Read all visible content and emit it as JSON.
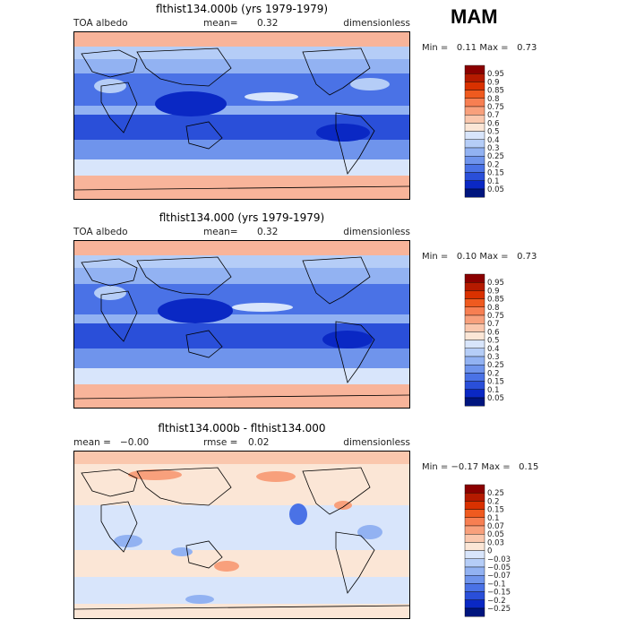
{
  "season": "MAM",
  "panels": [
    {
      "title": "flthist134.000b (yrs 1979-1979)",
      "left_label": "TOA albedo",
      "mean_label": "mean=",
      "mean_value": "0.32",
      "units": "dimensionless",
      "min_label": "Min =",
      "min_value": "0.11",
      "max_label": "Max =",
      "max_value": "0.73",
      "levels": [
        "0.95",
        "0.9",
        "0.85",
        "0.8",
        "0.75",
        "0.7",
        "0.6",
        "0.5",
        "0.4",
        "0.3",
        "0.25",
        "0.2",
        "0.15",
        "0.1",
        "0.05"
      ],
      "colors": [
        "#8b0000",
        "#b51a00",
        "#d93100",
        "#ef5a1f",
        "#f77f52",
        "#f8a07c",
        "#fac7ad",
        "#fbe6d6",
        "#d8e5fb",
        "#b5cdf7",
        "#92b2f2",
        "#6f94ec",
        "#4a72e6",
        "#2a4fd9",
        "#0a28c4",
        "#00157e"
      ]
    },
    {
      "title": "flthist134.000 (yrs 1979-1979)",
      "left_label": "TOA albedo",
      "mean_label": "mean=",
      "mean_value": "0.32",
      "units": "dimensionless",
      "min_label": "Min =",
      "min_value": "0.10",
      "max_label": "Max =",
      "max_value": "0.73",
      "levels": [
        "0.95",
        "0.9",
        "0.85",
        "0.8",
        "0.75",
        "0.7",
        "0.6",
        "0.5",
        "0.4",
        "0.3",
        "0.25",
        "0.2",
        "0.15",
        "0.1",
        "0.05"
      ],
      "colors": [
        "#8b0000",
        "#b51a00",
        "#d93100",
        "#ef5a1f",
        "#f77f52",
        "#f8a07c",
        "#fac7ad",
        "#fbe6d6",
        "#d8e5fb",
        "#b5cdf7",
        "#92b2f2",
        "#6f94ec",
        "#4a72e6",
        "#2a4fd9",
        "#0a28c4",
        "#00157e"
      ]
    },
    {
      "title": "flthist134.000b - flthist134.000",
      "left_label": "mean =",
      "left_value": "−0.00",
      "mean_label": "rmse =",
      "mean_value": "0.02",
      "units": "dimensionless",
      "min_label": "Min =",
      "min_value": "−0.17",
      "max_label": "Max =",
      "max_value": "0.15",
      "levels": [
        "0.25",
        "0.2",
        "0.15",
        "0.1",
        "0.07",
        "0.05",
        "0.03",
        "0",
        "−0.03",
        "−0.05",
        "−0.07",
        "−0.1",
        "−0.15",
        "−0.2",
        "−0.25"
      ],
      "colors": [
        "#8b0000",
        "#b51a00",
        "#d93100",
        "#ef5a1f",
        "#f77f52",
        "#f8a07c",
        "#fac7ad",
        "#fbe6d6",
        "#d8e5fb",
        "#b5cdf7",
        "#92b2f2",
        "#6f94ec",
        "#4a72e6",
        "#2a4fd9",
        "#0a28c4",
        "#00157e"
      ]
    }
  ]
}
